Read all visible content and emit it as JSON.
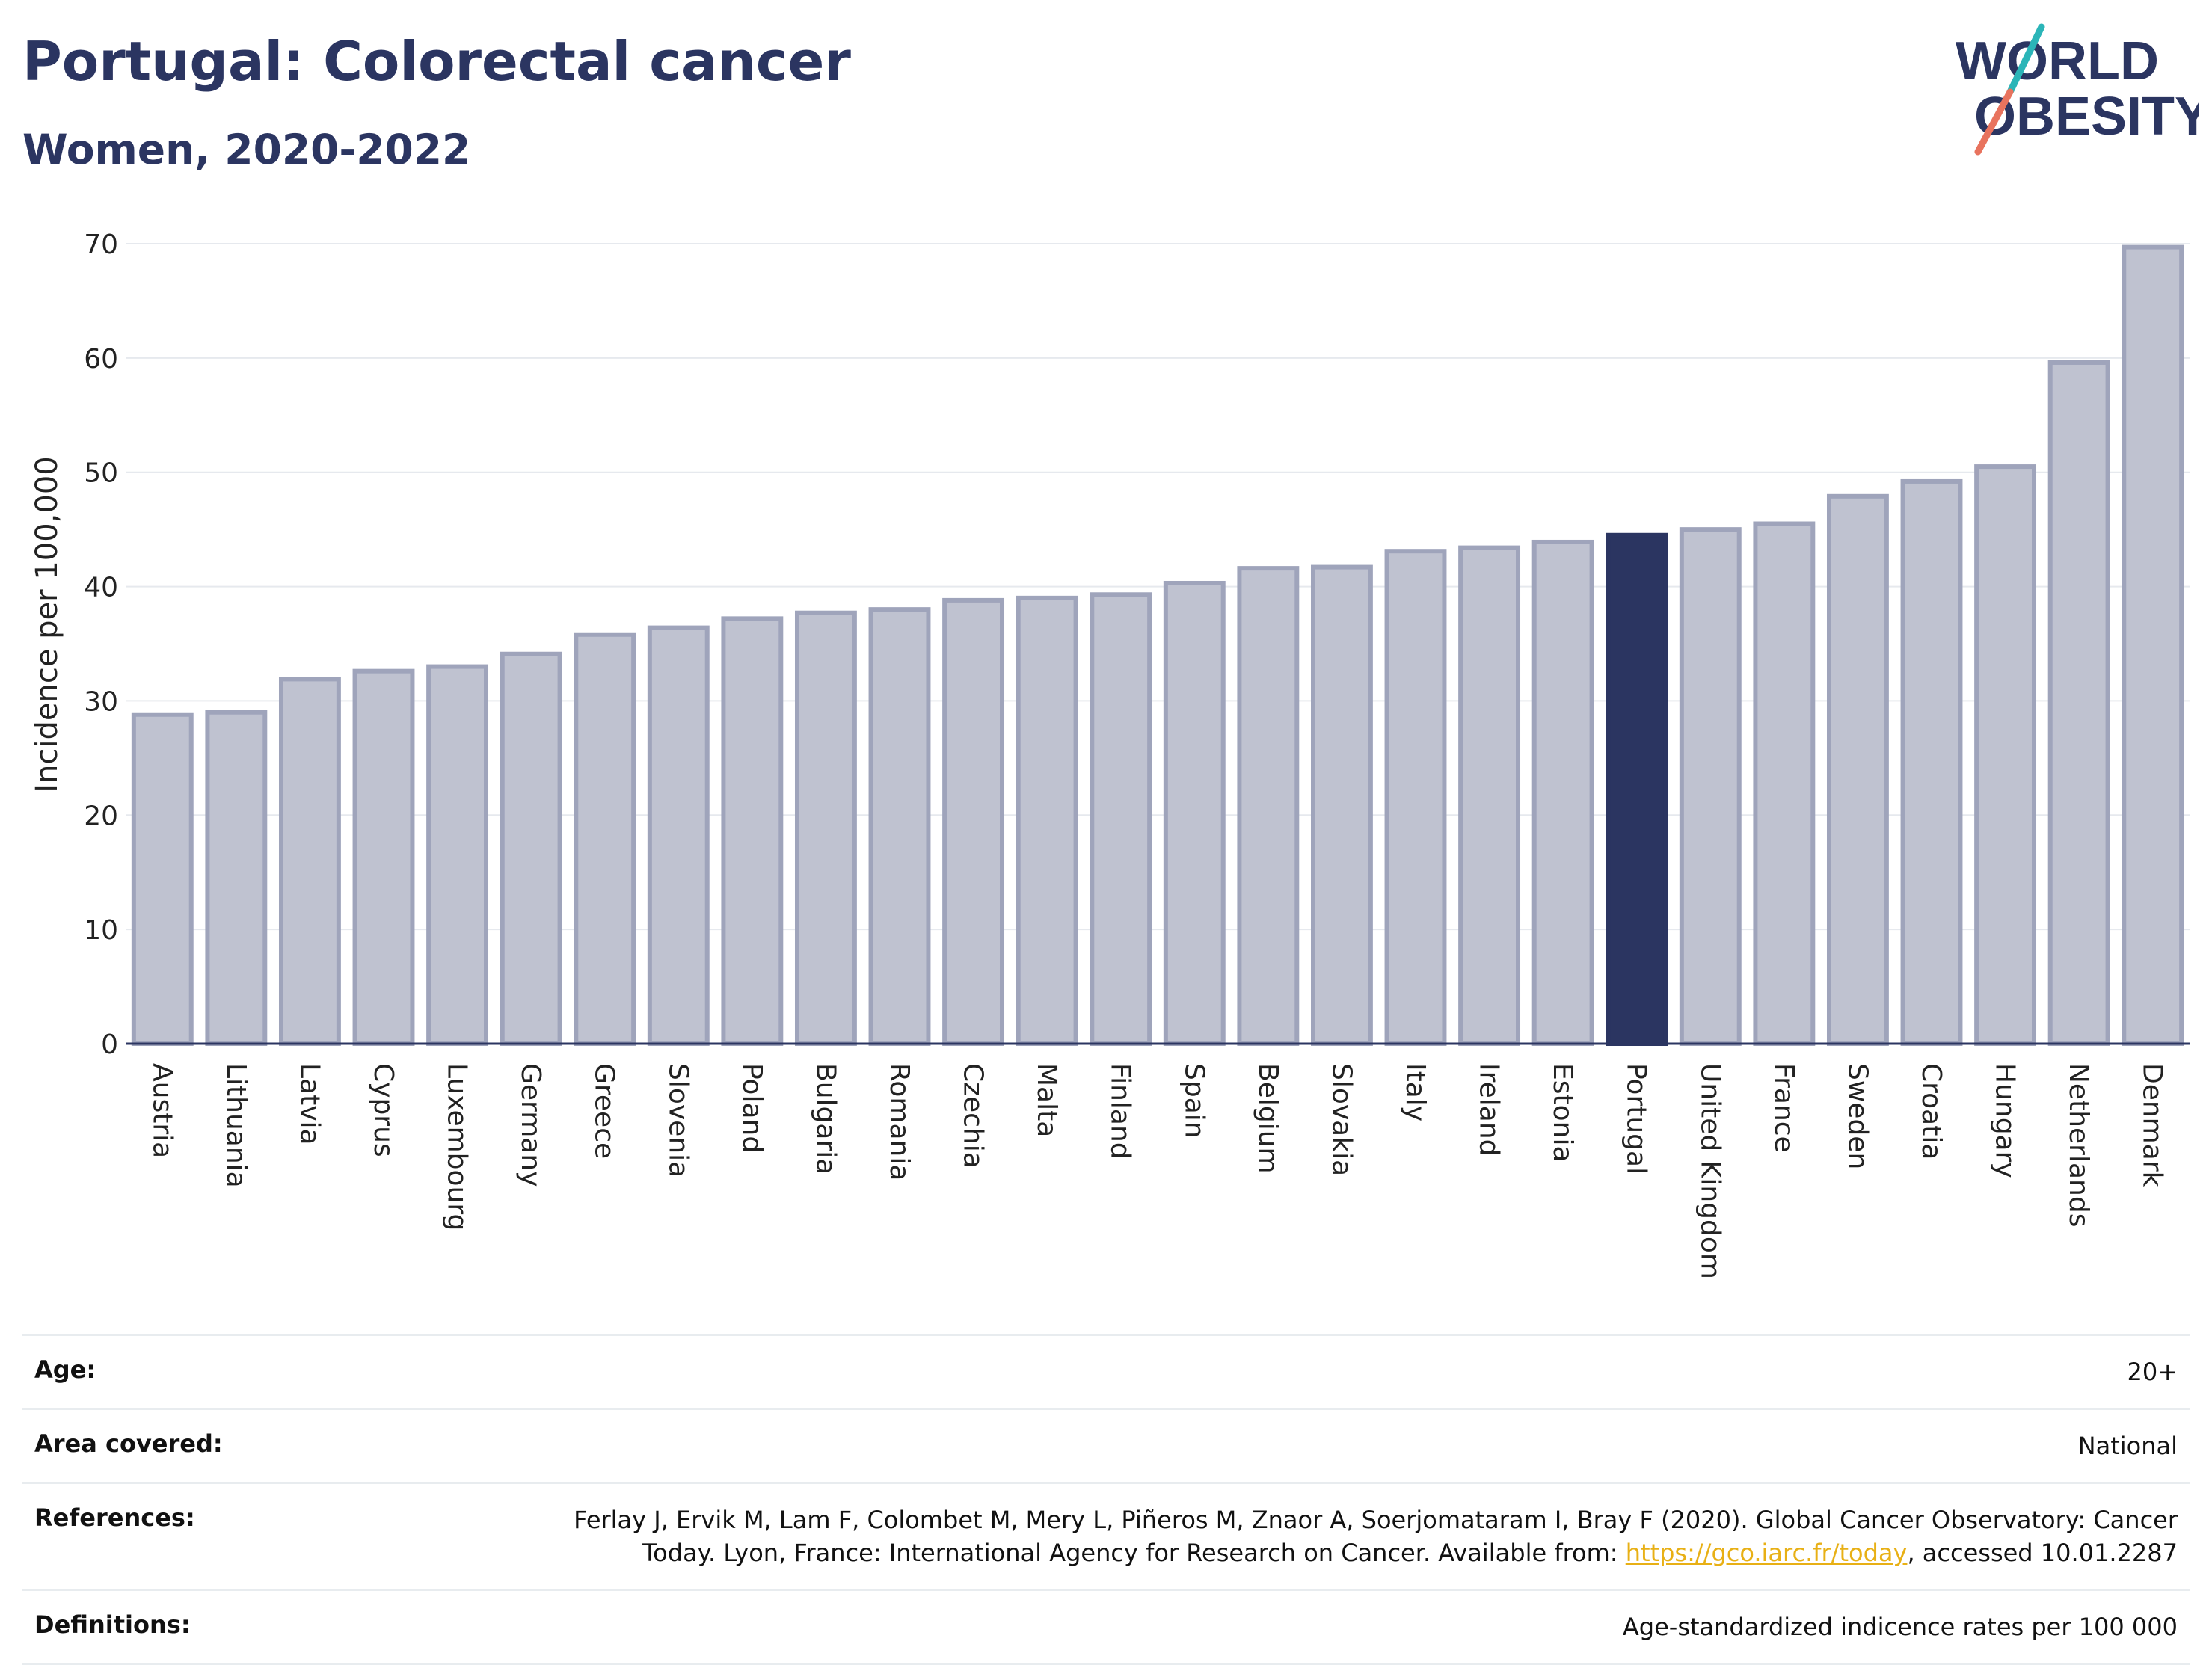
{
  "header": {
    "title": "Portugal: Colorectal cancer",
    "subtitle": "Women, 2020-2022"
  },
  "logo": {
    "line1": "WORLD",
    "line2": "OBESITY",
    "colors": {
      "text": "#2b3561",
      "slash_teal": "#2bb5b8",
      "slash_coral": "#e8735e"
    }
  },
  "colors": {
    "bar_fill": "#bfc2d0",
    "bar_stroke": "#9fa4bb",
    "highlight": "#2b3561",
    "grid": "#e6e9ee",
    "axis": "#2b3561"
  },
  "chart_data": {
    "type": "bar",
    "title": "",
    "xlabel": "",
    "ylabel": "Incidence per 100,000",
    "ylim": [
      0,
      70
    ],
    "yticks": [
      0,
      10,
      20,
      30,
      40,
      50,
      60,
      70
    ],
    "grid": true,
    "highlight": "Portugal",
    "categories": [
      "Austria",
      "Lithuania",
      "Latvia",
      "Cyprus",
      "Luxembourg",
      "Germany",
      "Greece",
      "Slovenia",
      "Poland",
      "Bulgaria",
      "Romania",
      "Czechia",
      "Malta",
      "Finland",
      "Spain",
      "Belgium",
      "Slovakia",
      "Italy",
      "Ireland",
      "Estonia",
      "Portugal",
      "United Kingdom",
      "France",
      "Sweden",
      "Croatia",
      "Hungary",
      "Netherlands",
      "Denmark"
    ],
    "values": [
      28.8,
      29.0,
      31.9,
      32.6,
      33.0,
      34.1,
      35.8,
      36.4,
      37.2,
      37.7,
      38.0,
      38.8,
      39.0,
      39.3,
      40.3,
      41.6,
      41.7,
      43.1,
      43.4,
      43.9,
      44.5,
      45.0,
      45.5,
      47.9,
      49.2,
      50.5,
      59.6,
      69.7
    ]
  },
  "info": {
    "age": {
      "label": "Age:",
      "value": "20+"
    },
    "area": {
      "label": "Area covered:",
      "value": "National"
    },
    "references": {
      "label": "References:",
      "text_before": "Ferlay J, Ervik M, Lam F, Colombet M, Mery L, Piñeros M, Znaor A, Soerjomataram I, Bray F (2020). Global Cancer Observatory: Cancer Today. Lyon, France: International Agency for Research on Cancer. Available from: ",
      "link": "https://gco.iarc.fr/today",
      "text_after": ", accessed 10.01.2287"
    },
    "definitions": {
      "label": "Definitions:",
      "value": "Age-standardized indicence rates per 100 000"
    }
  }
}
